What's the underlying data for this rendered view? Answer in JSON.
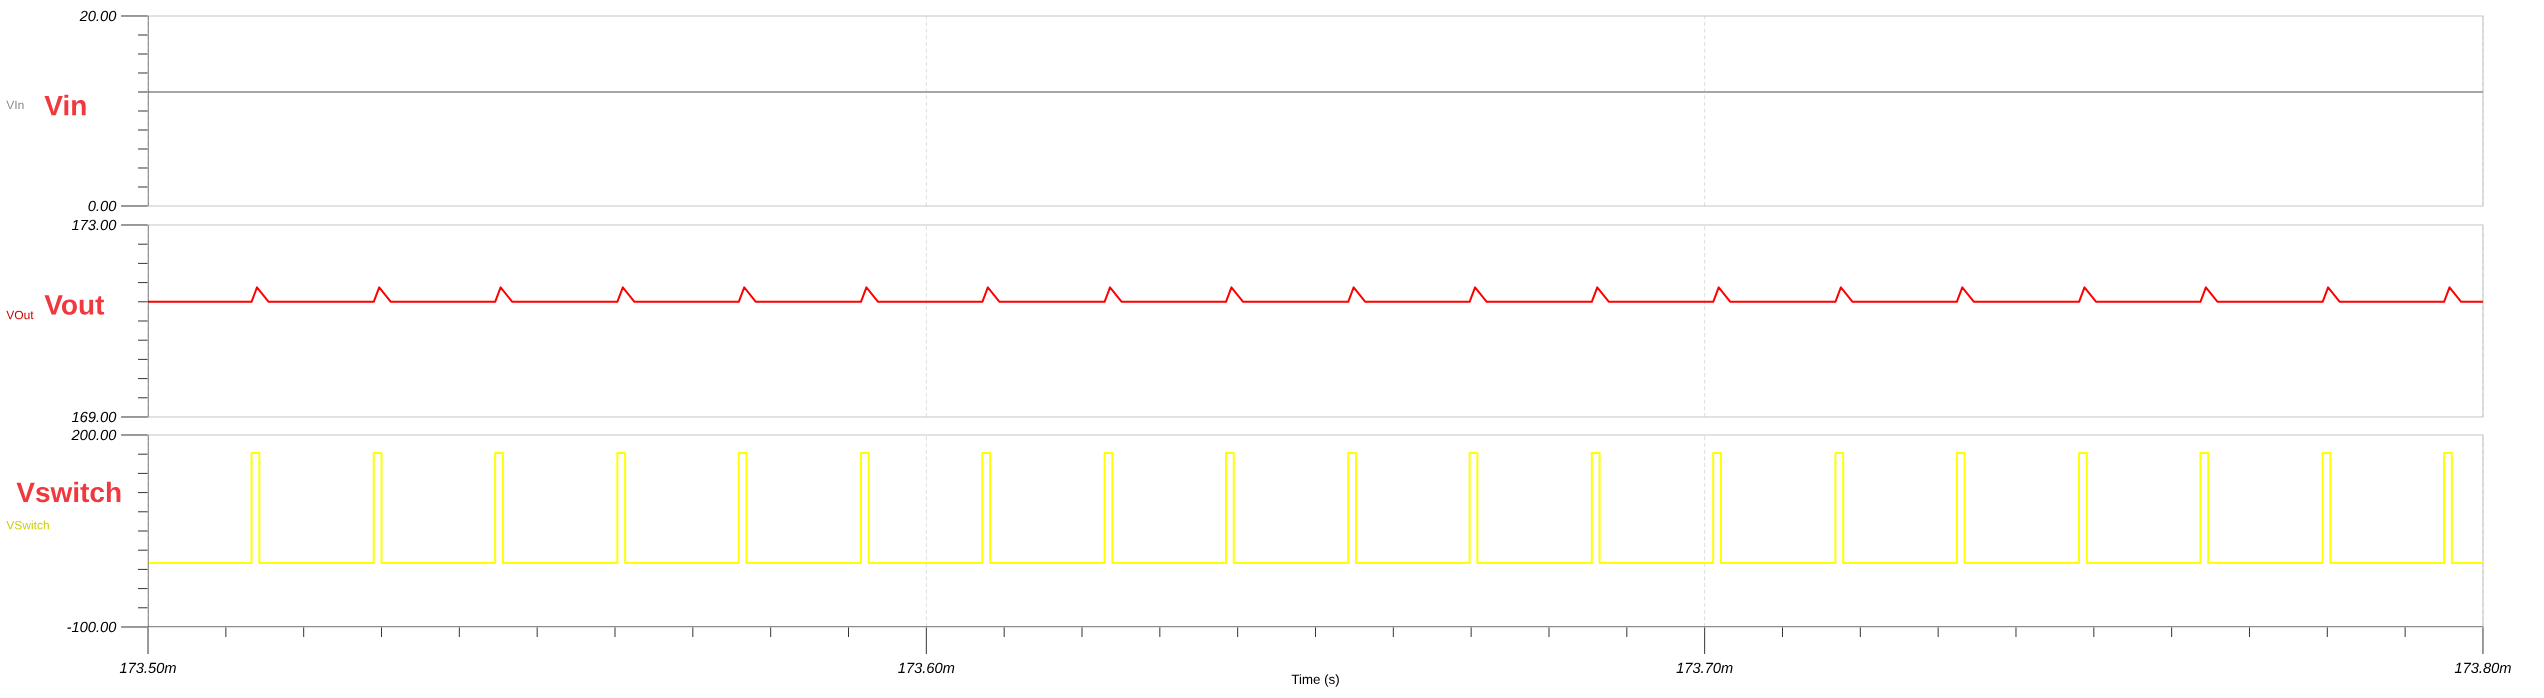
{
  "chart_data": [
    {
      "type": "line",
      "annotations": [
        "Vin"
      ],
      "xlim": [
        173.5,
        173.8
      ],
      "xticks": [
        173.5,
        173.6,
        173.7,
        173.8
      ],
      "tick_labels": "y",
      "grid": "x",
      "ylim": [
        0,
        20
      ],
      "yticks": [
        {
          "value": 0,
          "label": "0.00"
        },
        {
          "value": 2,
          "label": null
        },
        {
          "value": 4,
          "label": null
        },
        {
          "value": 6,
          "label": null
        },
        {
          "value": 8,
          "label": null
        },
        {
          "value": 10,
          "label": null
        },
        {
          "value": 12,
          "label": null
        },
        {
          "value": 14,
          "label": null
        },
        {
          "value": 16,
          "label": null
        },
        {
          "value": 18,
          "label": null
        },
        {
          "value": 20,
          "label": "20.00"
        }
      ],
      "series": [
        {
          "name": "VIn",
          "color": "#a6a6a6",
          "x": [
            173.5,
            173.8
          ],
          "values": [
            12,
            12
          ]
        }
      ]
    },
    {
      "type": "line",
      "annotations": [
        "Vout"
      ],
      "xlim": [
        173.5,
        173.8
      ],
      "xticks": [
        173.5,
        173.6,
        173.7,
        173.8
      ],
      "tick_labels": "y",
      "grid": "x",
      "ylim": [
        169,
        173
      ],
      "yticks": [
        {
          "value": 169,
          "label": "169.00"
        },
        {
          "value": 169.4,
          "label": null
        },
        {
          "value": 169.8,
          "label": null
        },
        {
          "value": 170.2,
          "label": null
        },
        {
          "value": 170.6,
          "label": null
        },
        {
          "value": 171,
          "label": null
        },
        {
          "value": 171.4,
          "label": null
        },
        {
          "value": 171.8,
          "label": null
        },
        {
          "value": 172.2,
          "label": null
        },
        {
          "value": 172.6,
          "label": null
        },
        {
          "value": 173,
          "label": "173.00"
        }
      ],
      "series": [
        {
          "name": "VOut",
          "color": "#ff0000",
          "x": [
            173.5,
            173.5133,
            173.514,
            173.5155,
            173.529,
            173.5297,
            173.5312,
            173.5446,
            173.5453,
            173.5468,
            173.5603,
            173.561,
            173.5625,
            173.5759,
            173.5766,
            173.5781,
            173.5916,
            173.5923,
            173.5938,
            173.6072,
            173.6079,
            173.6094,
            173.6229,
            173.6236,
            173.6251,
            173.6385,
            173.6392,
            173.6407,
            173.6542,
            173.6549,
            173.6564,
            173.6698,
            173.6705,
            173.672,
            173.6855,
            173.6862,
            173.6877,
            173.7011,
            173.7018,
            173.7033,
            173.7168,
            173.7175,
            173.719,
            173.7324,
            173.7331,
            173.7346,
            173.7481,
            173.7488,
            173.7503,
            173.7637,
            173.7644,
            173.7659,
            173.7794,
            173.7801,
            173.7816,
            173.795,
            173.7957,
            173.7972,
            173.8
          ],
          "values": [
            171.4,
            171.4,
            171.7,
            171.4,
            171.4,
            171.7,
            171.4,
            171.4,
            171.7,
            171.4,
            171.4,
            171.7,
            171.4,
            171.4,
            171.7,
            171.4,
            171.4,
            171.7,
            171.4,
            171.4,
            171.7,
            171.4,
            171.4,
            171.7,
            171.4,
            171.4,
            171.7,
            171.4,
            171.4,
            171.7,
            171.4,
            171.4,
            171.7,
            171.4,
            171.4,
            171.7,
            171.4,
            171.4,
            171.7,
            171.4,
            171.4,
            171.7,
            171.4,
            171.4,
            171.7,
            171.4,
            171.4,
            171.7,
            171.4,
            171.4,
            171.7,
            171.4,
            171.4,
            171.7,
            171.4,
            171.4,
            171.7,
            171.4,
            171.4
          ]
        }
      ]
    },
    {
      "type": "line",
      "annotations": [
        "Vswitch"
      ],
      "xlabel": "Time (s)",
      "xlim": [
        173.5,
        173.8
      ],
      "xticks": [
        {
          "value": 173.5,
          "label": "173.50m"
        },
        {
          "value": 173.51,
          "label": null
        },
        {
          "value": 173.52,
          "label": null
        },
        {
          "value": 173.53,
          "label": null
        },
        {
          "value": 173.54,
          "label": null
        },
        {
          "value": 173.55,
          "label": null
        },
        {
          "value": 173.56,
          "label": null
        },
        {
          "value": 173.57,
          "label": null
        },
        {
          "value": 173.58,
          "label": null
        },
        {
          "value": 173.59,
          "label": null
        },
        {
          "value": 173.6,
          "label": "173.60m"
        },
        {
          "value": 173.61,
          "label": null
        },
        {
          "value": 173.62,
          "label": null
        },
        {
          "value": 173.63,
          "label": null
        },
        {
          "value": 173.64,
          "label": null
        },
        {
          "value": 173.65,
          "label": null
        },
        {
          "value": 173.66,
          "label": null
        },
        {
          "value": 173.67,
          "label": null
        },
        {
          "value": 173.68,
          "label": null
        },
        {
          "value": 173.69,
          "label": null
        },
        {
          "value": 173.7,
          "label": "173.70m"
        },
        {
          "value": 173.71,
          "label": null
        },
        {
          "value": 173.72,
          "label": null
        },
        {
          "value": 173.73,
          "label": null
        },
        {
          "value": 173.74,
          "label": null
        },
        {
          "value": 173.75,
          "label": null
        },
        {
          "value": 173.76,
          "label": null
        },
        {
          "value": 173.77,
          "label": null
        },
        {
          "value": 173.78,
          "label": null
        },
        {
          "value": 173.79,
          "label": null
        },
        {
          "value": 173.8,
          "label": "173.80m"
        }
      ],
      "grid": "x",
      "ylim": [
        -100,
        200
      ],
      "yticks": [
        {
          "value": -100,
          "label": "-100.00"
        },
        {
          "value": -70,
          "label": null
        },
        {
          "value": -40,
          "label": null
        },
        {
          "value": -10,
          "label": null
        },
        {
          "value": 20,
          "label": null
        },
        {
          "value": 50,
          "label": null
        },
        {
          "value": 80,
          "label": null
        },
        {
          "value": 110,
          "label": null
        },
        {
          "value": 140,
          "label": null
        },
        {
          "value": 170,
          "label": null
        },
        {
          "value": 200,
          "label": "200.00"
        }
      ],
      "series": [
        {
          "name": "VSwitch",
          "color": "#ffff00",
          "x": [
            173.5,
            173.5133,
            173.5133,
            173.5143,
            173.5143,
            173.529,
            173.529,
            173.53,
            173.53,
            173.5446,
            173.5446,
            173.5456,
            173.5456,
            173.5603,
            173.5603,
            173.5613,
            173.5613,
            173.5759,
            173.5759,
            173.5769,
            173.5769,
            173.5916,
            173.5916,
            173.5926,
            173.5926,
            173.6072,
            173.6072,
            173.6082,
            173.6082,
            173.6229,
            173.6229,
            173.6239,
            173.6239,
            173.6385,
            173.6385,
            173.6395,
            173.6395,
            173.6542,
            173.6542,
            173.6552,
            173.6552,
            173.6698,
            173.6698,
            173.6708,
            173.6708,
            173.6855,
            173.6855,
            173.6865,
            173.6865,
            173.7011,
            173.7011,
            173.7021,
            173.7021,
            173.7168,
            173.7168,
            173.7178,
            173.7178,
            173.7324,
            173.7324,
            173.7334,
            173.7334,
            173.7481,
            173.7481,
            173.7491,
            173.7491,
            173.7637,
            173.7637,
            173.7647,
            173.7647,
            173.7794,
            173.7794,
            173.7804,
            173.7804,
            173.795,
            173.795,
            173.796,
            173.796,
            173.8
          ],
          "values": [
            0,
            0,
            172,
            172,
            0,
            0,
            172,
            172,
            0,
            0,
            172,
            172,
            0,
            0,
            172,
            172,
            0,
            0,
            172,
            172,
            0,
            0,
            172,
            172,
            0,
            0,
            172,
            172,
            0,
            0,
            172,
            172,
            0,
            0,
            172,
            172,
            0,
            0,
            172,
            172,
            0,
            0,
            172,
            172,
            0,
            0,
            172,
            172,
            0,
            0,
            172,
            172,
            0,
            0,
            172,
            172,
            0,
            0,
            172,
            172,
            0,
            0,
            172,
            172,
            0,
            0,
            172,
            172,
            0,
            0,
            172,
            172,
            0,
            0,
            172,
            172,
            0,
            0
          ]
        }
      ]
    }
  ]
}
